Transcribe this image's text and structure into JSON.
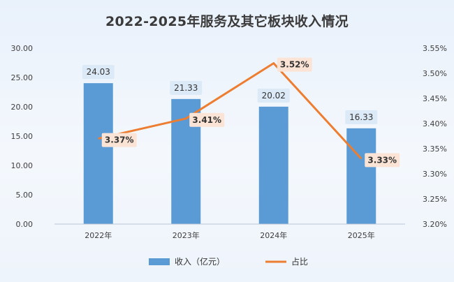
{
  "chart_data": {
    "type": "bar",
    "title": "2022-2025年服务及其它板块收入情况",
    "categories": [
      "2022年",
      "2023年",
      "2024年",
      "2025年"
    ],
    "series": [
      {
        "name": "收入（亿元）",
        "type": "bar",
        "axis": "left",
        "values": [
          24.03,
          21.33,
          20.02,
          16.33
        ],
        "labels": [
          "24.03",
          "21.33",
          "20.02",
          "16.33"
        ]
      },
      {
        "name": "占比",
        "type": "line",
        "axis": "right",
        "values": [
          3.37,
          3.41,
          3.52,
          3.33
        ],
        "labels": [
          "3.37%",
          "3.41%",
          "3.52%",
          "3.33%"
        ]
      }
    ],
    "y_left": {
      "lim": [
        0,
        30
      ],
      "ticks": [
        "0.00",
        "5.00",
        "10.00",
        "15.00",
        "20.00",
        "25.00",
        "30.00"
      ]
    },
    "y_right": {
      "lim": [
        3.2,
        3.55
      ],
      "ticks": [
        "3.20%",
        "3.25%",
        "3.30%",
        "3.35%",
        "3.40%",
        "3.45%",
        "3.50%",
        "3.55%"
      ]
    },
    "colors": {
      "bar": "#5b9bd5",
      "line": "#ed7d31",
      "bar_label_bg": "#dce9f6",
      "line_label_bg": "#fbe4d5"
    },
    "legend_position": "bottom",
    "grid": false
  }
}
